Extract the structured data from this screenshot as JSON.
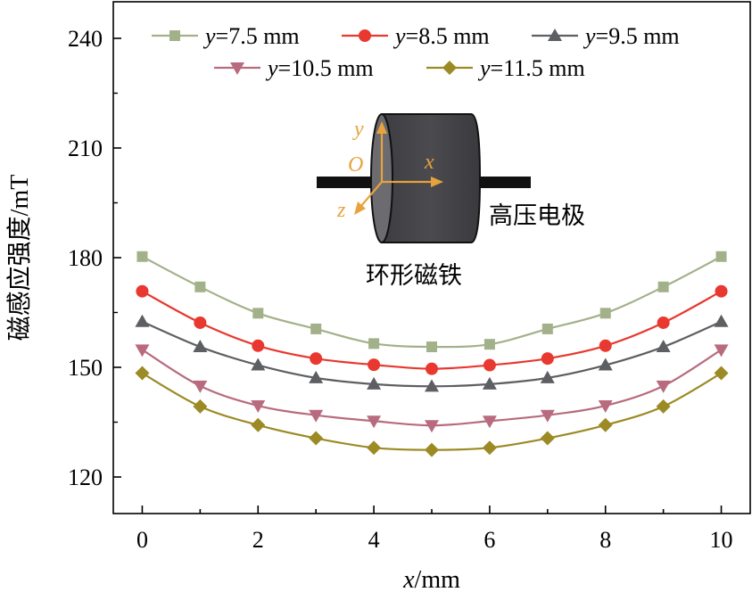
{
  "chart_data": {
    "type": "line",
    "title": "",
    "xlabel_var": "x",
    "xlabel_unit": "/mm",
    "ylabel": "磁感应强度/mT",
    "xlim": [
      -0.5,
      10.5
    ],
    "ylim": [
      110,
      250
    ],
    "x_ticks": [
      0,
      2,
      4,
      6,
      8,
      10
    ],
    "y_ticks": [
      120,
      150,
      180,
      210,
      240
    ],
    "x": [
      0,
      1,
      2,
      3,
      4,
      5,
      6,
      7,
      8,
      9,
      10
    ],
    "series": [
      {
        "name": "y=7.5 mm",
        "var": "y",
        "rest": "=7.5 mm",
        "marker": "square",
        "color": "#a3b18a",
        "values": [
          180.3,
          172.0,
          164.8,
          160.5,
          156.5,
          155.6,
          156.3,
          160.5,
          164.8,
          172.0,
          180.3
        ]
      },
      {
        "name": "y=8.5 mm",
        "var": "y",
        "rest": "=8.5 mm",
        "marker": "circle",
        "color": "#e8382f",
        "values": [
          170.8,
          162.2,
          155.9,
          152.4,
          150.7,
          149.6,
          150.6,
          152.4,
          155.9,
          162.2,
          170.8
        ]
      },
      {
        "name": "y=9.5 mm",
        "var": "y",
        "rest": "=9.5 mm",
        "marker": "triangle-up",
        "color": "#5e5f63",
        "values": [
          162.5,
          155.6,
          150.6,
          147.1,
          145.4,
          144.8,
          145.4,
          147.1,
          150.6,
          155.6,
          162.5
        ]
      },
      {
        "name": "y=10.5 mm",
        "var": "y",
        "rest": "=10.5 mm",
        "marker": "triangle-down",
        "color": "#b86b7e",
        "values": [
          154.8,
          144.9,
          139.5,
          136.9,
          135.3,
          134.1,
          135.3,
          136.9,
          139.5,
          144.9,
          154.8
        ]
      },
      {
        "name": "y=11.5 mm",
        "var": "y",
        "rest": "=11.5 mm",
        "marker": "diamond",
        "color": "#9c8a24",
        "values": [
          148.4,
          139.3,
          134.2,
          130.6,
          128.0,
          127.4,
          128.0,
          130.6,
          134.2,
          139.3,
          148.4
        ]
      }
    ],
    "legend_position": "top",
    "inset": {
      "electrode_label": "高压电极",
      "magnet_label": "环形磁铁",
      "axis_y": "y",
      "axis_x": "x",
      "axis_z": "z",
      "origin": "O",
      "axis_color": "#e8a23c"
    }
  }
}
